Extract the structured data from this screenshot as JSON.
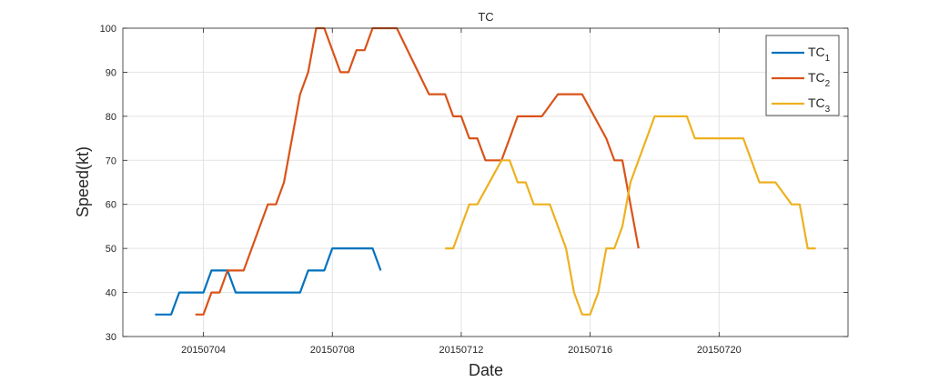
{
  "chart_data": {
    "type": "line",
    "title": "TC",
    "xlabel": "Date",
    "ylabel": "Speed(kt)",
    "x_unit": "date",
    "xlim": [
      "2015-07-01T12:00",
      "2015-07-24T00:00"
    ],
    "ylim": [
      30,
      100
    ],
    "x_ticks": [
      {
        "date": "2015-07-04",
        "label": "20150704"
      },
      {
        "date": "2015-07-08",
        "label": "20150708"
      },
      {
        "date": "2015-07-12",
        "label": "20150712"
      },
      {
        "date": "2015-07-16",
        "label": "20150716"
      },
      {
        "date": "2015-07-20",
        "label": "20150720"
      }
    ],
    "y_ticks": [
      30,
      40,
      50,
      60,
      70,
      80,
      90,
      100
    ],
    "grid": true,
    "legend_position": "top-right",
    "series": [
      {
        "name": "TC",
        "subscript": "1",
        "color": "#0072BD",
        "points": [
          [
            "2015-07-02T12:00",
            35
          ],
          [
            "2015-07-03T00:00",
            35
          ],
          [
            "2015-07-03T06:00",
            40
          ],
          [
            "2015-07-04T00:00",
            40
          ],
          [
            "2015-07-04T06:00",
            45
          ],
          [
            "2015-07-04T18:00",
            45
          ],
          [
            "2015-07-05T00:00",
            40
          ],
          [
            "2015-07-07T00:00",
            40
          ],
          [
            "2015-07-07T06:00",
            45
          ],
          [
            "2015-07-07T18:00",
            45
          ],
          [
            "2015-07-08T00:00",
            50
          ],
          [
            "2015-07-09T06:00",
            50
          ],
          [
            "2015-07-09T12:00",
            45
          ]
        ]
      },
      {
        "name": "TC",
        "subscript": "2",
        "color": "#D95319",
        "points": [
          [
            "2015-07-03T18:00",
            35
          ],
          [
            "2015-07-04T00:00",
            35
          ],
          [
            "2015-07-04T06:00",
            40
          ],
          [
            "2015-07-04T12:00",
            40
          ],
          [
            "2015-07-04T18:00",
            45
          ],
          [
            "2015-07-05T06:00",
            45
          ],
          [
            "2015-07-06T00:00",
            60
          ],
          [
            "2015-07-06T06:00",
            60
          ],
          [
            "2015-07-06T12:00",
            65
          ],
          [
            "2015-07-07T00:00",
            85
          ],
          [
            "2015-07-07T06:00",
            90
          ],
          [
            "2015-07-07T12:00",
            100
          ],
          [
            "2015-07-07T18:00",
            100
          ],
          [
            "2015-07-08T06:00",
            90
          ],
          [
            "2015-07-08T12:00",
            90
          ],
          [
            "2015-07-08T18:00",
            95
          ],
          [
            "2015-07-09T00:00",
            95
          ],
          [
            "2015-07-09T06:00",
            100
          ],
          [
            "2015-07-10T00:00",
            100
          ],
          [
            "2015-07-11T00:00",
            85
          ],
          [
            "2015-07-11T12:00",
            85
          ],
          [
            "2015-07-11T18:00",
            80
          ],
          [
            "2015-07-12T00:00",
            80
          ],
          [
            "2015-07-12T06:00",
            75
          ],
          [
            "2015-07-12T12:00",
            75
          ],
          [
            "2015-07-12T18:00",
            70
          ],
          [
            "2015-07-13T06:00",
            70
          ],
          [
            "2015-07-13T12:00",
            75
          ],
          [
            "2015-07-13T18:00",
            80
          ],
          [
            "2015-07-14T12:00",
            80
          ],
          [
            "2015-07-15T00:00",
            85
          ],
          [
            "2015-07-15T18:00",
            85
          ],
          [
            "2015-07-16T12:00",
            75
          ],
          [
            "2015-07-16T18:00",
            70
          ],
          [
            "2015-07-17T00:00",
            70
          ],
          [
            "2015-07-17T12:00",
            50
          ]
        ]
      },
      {
        "name": "TC",
        "subscript": "3",
        "color": "#EDB120",
        "points": [
          [
            "2015-07-11T12:00",
            50
          ],
          [
            "2015-07-11T18:00",
            50
          ],
          [
            "2015-07-12T06:00",
            60
          ],
          [
            "2015-07-12T12:00",
            60
          ],
          [
            "2015-07-13T06:00",
            70
          ],
          [
            "2015-07-13T12:00",
            70
          ],
          [
            "2015-07-13T18:00",
            65
          ],
          [
            "2015-07-14T00:00",
            65
          ],
          [
            "2015-07-14T06:00",
            60
          ],
          [
            "2015-07-14T18:00",
            60
          ],
          [
            "2015-07-15T06:00",
            50
          ],
          [
            "2015-07-15T12:00",
            40
          ],
          [
            "2015-07-15T18:00",
            35
          ],
          [
            "2015-07-16T00:00",
            35
          ],
          [
            "2015-07-16T06:00",
            40
          ],
          [
            "2015-07-16T12:00",
            50
          ],
          [
            "2015-07-16T18:00",
            50
          ],
          [
            "2015-07-17T00:00",
            55
          ],
          [
            "2015-07-17T06:00",
            65
          ],
          [
            "2015-07-18T00:00",
            80
          ],
          [
            "2015-07-19T00:00",
            80
          ],
          [
            "2015-07-19T06:00",
            75
          ],
          [
            "2015-07-20T18:00",
            75
          ],
          [
            "2015-07-21T06:00",
            65
          ],
          [
            "2015-07-21T18:00",
            65
          ],
          [
            "2015-07-22T06:00",
            60
          ],
          [
            "2015-07-22T12:00",
            60
          ],
          [
            "2015-07-22T18:00",
            50
          ],
          [
            "2015-07-23T00:00",
            50
          ]
        ]
      }
    ]
  }
}
